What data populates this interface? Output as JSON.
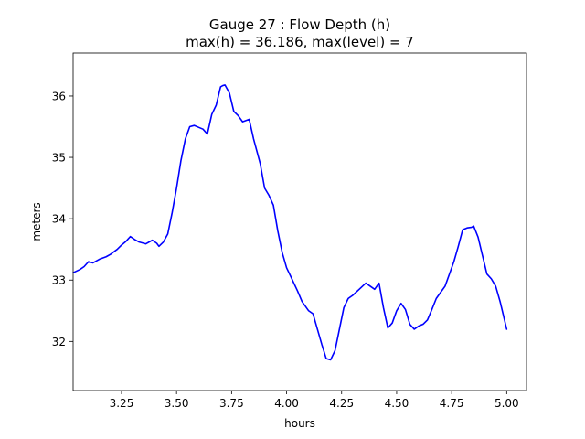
{
  "chart_data": {
    "type": "line",
    "title": "Gauge 27 : Flow Depth (h)",
    "subtitle": "max(h) =  36.186,    max(level) = 7",
    "xlabel": "hours",
    "ylabel": "meters",
    "xlim": [
      3.03,
      5.09
    ],
    "ylim": [
      31.2,
      36.7
    ],
    "xticks": [
      3.25,
      3.5,
      3.75,
      4.0,
      4.25,
      4.5,
      4.75,
      5.0
    ],
    "xtick_labels": [
      "3.25",
      "3.50",
      "3.75",
      "4.00",
      "4.25",
      "4.50",
      "4.75",
      "5.00"
    ],
    "yticks": [
      32,
      33,
      34,
      35,
      36
    ],
    "ytick_labels": [
      "32",
      "33",
      "34",
      "35",
      "36"
    ],
    "grid": false,
    "series": [
      {
        "color": "#0000ff",
        "x": [
          3.03,
          3.06,
          3.08,
          3.1,
          3.12,
          3.15,
          3.18,
          3.2,
          3.23,
          3.25,
          3.27,
          3.29,
          3.31,
          3.33,
          3.36,
          3.39,
          3.41,
          3.42,
          3.44,
          3.46,
          3.48,
          3.5,
          3.52,
          3.54,
          3.56,
          3.58,
          3.6,
          3.62,
          3.64,
          3.66,
          3.68,
          3.69,
          3.7,
          3.71,
          3.72,
          3.74,
          3.76,
          3.78,
          3.8,
          3.83,
          3.85,
          3.88,
          3.9,
          3.92,
          3.94,
          3.96,
          3.98,
          4.0,
          4.02,
          4.05,
          4.07,
          4.1,
          4.12,
          4.14,
          4.16,
          4.18,
          4.2,
          4.22,
          4.24,
          4.26,
          4.28,
          4.3,
          4.33,
          4.36,
          4.38,
          4.4,
          4.42,
          4.44,
          4.46,
          4.48,
          4.5,
          4.52,
          4.54,
          4.56,
          4.58,
          4.6,
          4.62,
          4.64,
          4.66,
          4.68,
          4.7,
          4.72,
          4.74,
          4.76,
          4.78,
          4.8,
          4.82,
          4.84,
          4.85,
          4.87,
          4.89,
          4.91,
          4.93,
          4.95,
          4.97,
          4.99,
          5.0
        ],
        "y": [
          33.12,
          33.17,
          33.22,
          33.3,
          33.28,
          33.34,
          33.38,
          33.42,
          33.5,
          33.57,
          33.63,
          33.71,
          33.66,
          33.62,
          33.59,
          33.65,
          33.6,
          33.55,
          33.62,
          33.75,
          34.1,
          34.5,
          34.95,
          35.3,
          35.5,
          35.52,
          35.49,
          35.46,
          35.38,
          35.7,
          35.85,
          36.0,
          36.15,
          36.17,
          36.18,
          36.05,
          35.75,
          35.68,
          35.58,
          35.62,
          35.3,
          34.9,
          34.5,
          34.38,
          34.22,
          33.8,
          33.45,
          33.2,
          33.05,
          32.82,
          32.65,
          32.5,
          32.45,
          32.2,
          31.95,
          31.72,
          31.7,
          31.85,
          32.2,
          32.55,
          32.7,
          32.75,
          32.85,
          32.95,
          32.9,
          32.85,
          32.95,
          32.55,
          32.22,
          32.3,
          32.5,
          32.62,
          32.52,
          32.28,
          32.2,
          32.25,
          32.28,
          32.35,
          32.52,
          32.7,
          32.8,
          32.9,
          33.1,
          33.3,
          33.55,
          33.82,
          33.85,
          33.86,
          33.88,
          33.7,
          33.4,
          33.1,
          33.02,
          32.9,
          32.65,
          32.35,
          32.2
        ]
      }
    ]
  }
}
